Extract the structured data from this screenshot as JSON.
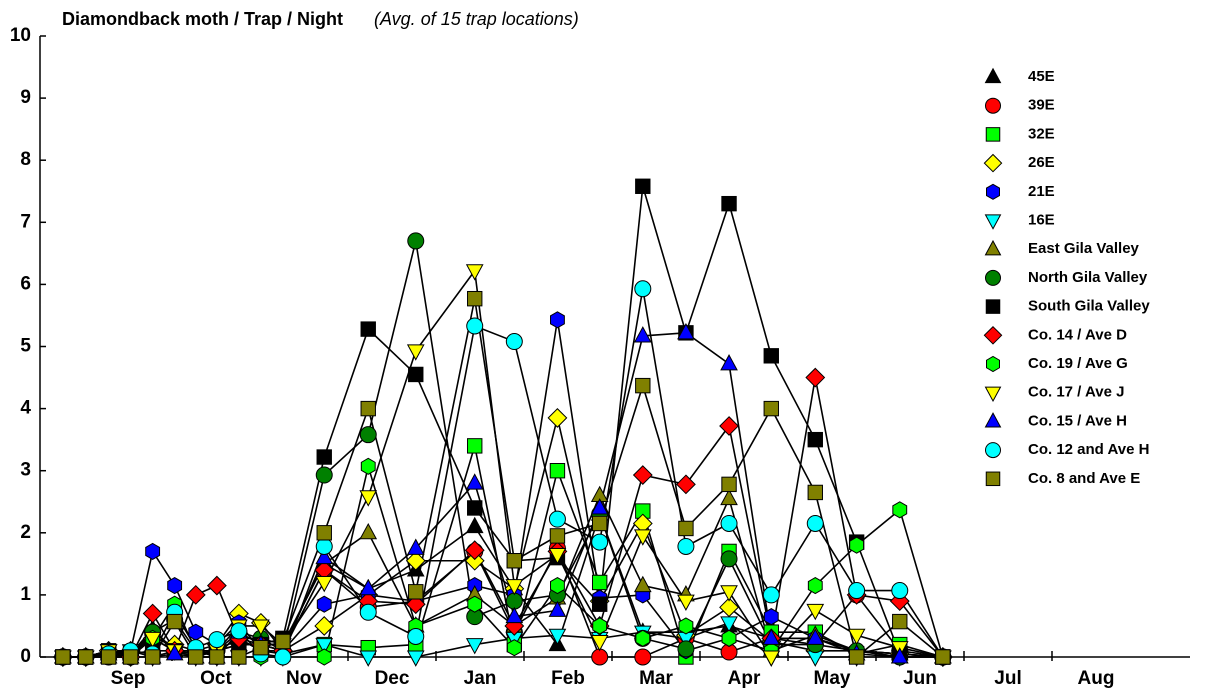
{
  "chart_data": {
    "type": "line",
    "title": "Diamondback moth / Trap / Night",
    "subtitle": "(Avg. of 15 trap locations)",
    "x": [
      -0.24,
      0.02,
      0.28,
      0.53,
      0.78,
      1.03,
      1.27,
      1.51,
      1.76,
      2.01,
      2.26,
      2.73,
      3.23,
      3.77,
      4.44,
      4.89,
      5.38,
      5.86,
      6.35,
      6.84,
      7.33,
      7.81,
      8.31,
      8.78,
      9.27,
      9.76
    ],
    "xlim": [
      -0.5,
      12.5
    ],
    "xticks": [
      {
        "value": 0.5,
        "label": "Sep"
      },
      {
        "value": 1.5,
        "label": "Oct"
      },
      {
        "value": 2.5,
        "label": "Nov"
      },
      {
        "value": 3.5,
        "label": "Dec"
      },
      {
        "value": 4.5,
        "label": "Jan"
      },
      {
        "value": 5.5,
        "label": "Feb"
      },
      {
        "value": 6.5,
        "label": "Mar"
      },
      {
        "value": 7.5,
        "label": "Apr"
      },
      {
        "value": 8.5,
        "label": "May"
      },
      {
        "value": 9.5,
        "label": "Jun"
      },
      {
        "value": 10.5,
        "label": "Jul"
      },
      {
        "value": 11.5,
        "label": "Aug"
      }
    ],
    "ylim": [
      0,
      10
    ],
    "yticks": [
      0,
      1,
      2,
      3,
      4,
      5,
      6,
      7,
      8,
      9,
      10
    ],
    "line_color": "#000000",
    "series": [
      {
        "name": "45E",
        "color": "#000000",
        "marker": "triangle-up",
        "values": [
          0,
          0,
          0.1,
          0.05,
          0.45,
          0.1,
          0.1,
          0.1,
          0.3,
          0.3,
          0.2,
          1.5,
          1.1,
          1.4,
          2.1,
          1.1,
          0.2,
          2.3,
          0.4,
          0.4,
          0.5,
          0.3,
          0.3,
          0.1,
          0.05,
          0
        ]
      },
      {
        "name": "39E",
        "color": "#ff0000",
        "marker": "circle",
        "values": [
          0,
          0,
          0.05,
          0.05,
          0.4,
          0.1,
          0.1,
          0.1,
          0.3,
          0.1,
          0.1,
          1.4,
          0.8,
          0.9,
          1.7,
          0.4,
          1.75,
          0,
          0,
          0.3,
          0.08,
          0.3,
          0.2,
          1.0,
          0.1,
          0
        ]
      },
      {
        "name": "32E",
        "color": "#00ff00",
        "marker": "square",
        "values": [
          0,
          0,
          0.05,
          0.05,
          0.3,
          0.1,
          0.1,
          0.1,
          0.3,
          0.1,
          0.05,
          0.2,
          0.15,
          0.2,
          3.4,
          0.2,
          3.0,
          1.2,
          2.35,
          0,
          1.7,
          0.4,
          0.4,
          0.05,
          0.2,
          0
        ]
      },
      {
        "name": "26E",
        "color": "#ffff00",
        "marker": "diamond",
        "values": [
          0,
          0,
          0.1,
          0.1,
          0.3,
          0.2,
          0.1,
          0.2,
          0.7,
          0.55,
          0.1,
          0.5,
          1.0,
          1.55,
          1.55,
          1.1,
          3.85,
          0.9,
          2.15,
          0.35,
          0.8,
          0.25,
          0.1,
          0.1,
          0.05,
          0
        ]
      },
      {
        "name": "21E",
        "color": "#0000ff",
        "marker": "hexagon",
        "values": [
          0,
          0,
          0.1,
          0.1,
          1.7,
          1.15,
          0.4,
          0.2,
          0.55,
          0.1,
          0.1,
          0.85,
          1.0,
          0.9,
          1.15,
          1.0,
          5.43,
          0.95,
          1.0,
          0.1,
          0.3,
          0.65,
          0.3,
          0.1,
          0.05,
          0
        ]
      },
      {
        "name": "16E",
        "color": "#00ffff",
        "marker": "triangle-down",
        "values": [
          0,
          0,
          0.1,
          0.1,
          0,
          0.1,
          0,
          0,
          0,
          0,
          0,
          0.2,
          0,
          0,
          0.2,
          0.3,
          0.35,
          0.3,
          0.4,
          0.3,
          0.55,
          0,
          0,
          0,
          0,
          0
        ]
      },
      {
        "name": "East Gila Valley",
        "color": "#808000",
        "marker": "triangle-up",
        "values": [
          0,
          0,
          0,
          0,
          0.4,
          0.1,
          0,
          0.1,
          0.2,
          0.2,
          0.2,
          1.5,
          2.0,
          0.5,
          1.0,
          0.5,
          0.95,
          2.6,
          1.15,
          1.0,
          2.55,
          0.1,
          0.35,
          0.1,
          0,
          0
        ]
      },
      {
        "name": "North Gila Valley",
        "color": "#008000",
        "marker": "circle",
        "values": [
          0,
          0,
          0,
          0,
          0.4,
          0.6,
          0.1,
          0.1,
          0.4,
          0.3,
          0.1,
          2.93,
          3.58,
          6.7,
          0.65,
          0.9,
          1.0,
          2.3,
          0.3,
          0.13,
          1.58,
          0.2,
          0.2,
          0.1,
          0,
          0
        ]
      },
      {
        "name": "South Gila Valley",
        "color": "#000000",
        "marker": "square",
        "values": [
          0,
          0,
          0.1,
          0.05,
          0.1,
          0.1,
          0.05,
          0.1,
          0.2,
          0.2,
          0.3,
          3.22,
          5.28,
          4.55,
          2.4,
          1.55,
          1.6,
          0.85,
          7.58,
          5.22,
          7.3,
          4.85,
          3.5,
          1.85,
          0.05,
          0
        ]
      },
      {
        "name": "Co. 14 / Ave D",
        "color": "#ff0000",
        "marker": "diamond",
        "values": [
          0,
          0,
          0.05,
          0,
          0.7,
          0.1,
          1.0,
          1.15,
          0.3,
          0.2,
          0.1,
          1.4,
          0.9,
          0.85,
          1.72,
          0.5,
          1.7,
          0.5,
          2.93,
          2.78,
          3.72,
          0.3,
          4.5,
          1.0,
          0.9,
          0
        ]
      },
      {
        "name": "Co. 19 / Ave G",
        "color": "#00ff00",
        "marker": "hexagon",
        "values": [
          0,
          0,
          0,
          0,
          0.3,
          0.85,
          0.1,
          0,
          0,
          0,
          0,
          0,
          3.07,
          0.5,
          0.85,
          0.15,
          1.15,
          0.5,
          0.3,
          0.5,
          0.3,
          0.1,
          1.15,
          1.8,
          2.37,
          0
        ]
      },
      {
        "name": "Co. 17 / Ave J",
        "color": "#ffff00",
        "marker": "triangle-down",
        "values": [
          0,
          0,
          0.1,
          0,
          0.3,
          0.1,
          0.1,
          0.1,
          0.5,
          0.5,
          0.2,
          1.2,
          2.58,
          4.93,
          6.22,
          1.15,
          1.65,
          0.25,
          1.95,
          0.9,
          1.05,
          0,
          0.75,
          0.35,
          0.15,
          0
        ]
      },
      {
        "name": "Co. 15 / Ave H",
        "color": "#0000ff",
        "marker": "triangle-up",
        "values": [
          0,
          0,
          0.05,
          0,
          0,
          0.05,
          0,
          0,
          0.4,
          0.2,
          0.1,
          1.6,
          1.1,
          1.75,
          2.8,
          0.65,
          0.75,
          2.4,
          5.17,
          5.22,
          4.72,
          0.3,
          0.3,
          0.05,
          0,
          0
        ]
      },
      {
        "name": "Co. 12 and Ave H",
        "color": "#00ffff",
        "marker": "circle",
        "values": [
          0,
          0,
          0.05,
          0.1,
          0.05,
          0.72,
          0.15,
          0.28,
          0.42,
          0.05,
          0,
          1.78,
          0.72,
          0.33,
          5.33,
          5.08,
          2.22,
          1.85,
          5.93,
          1.78,
          2.15,
          1.0,
          2.15,
          1.07,
          1.07,
          0
        ]
      },
      {
        "name": "Co. 8 and Ave E",
        "color": "#808000",
        "marker": "square",
        "values": [
          0,
          0,
          0,
          0,
          0,
          0.57,
          0,
          0,
          0,
          0.15,
          0.25,
          2.0,
          4.0,
          1.05,
          5.77,
          1.55,
          1.95,
          2.15,
          4.37,
          2.07,
          2.78,
          4.0,
          2.65,
          0,
          0.57,
          0
        ]
      }
    ]
  }
}
